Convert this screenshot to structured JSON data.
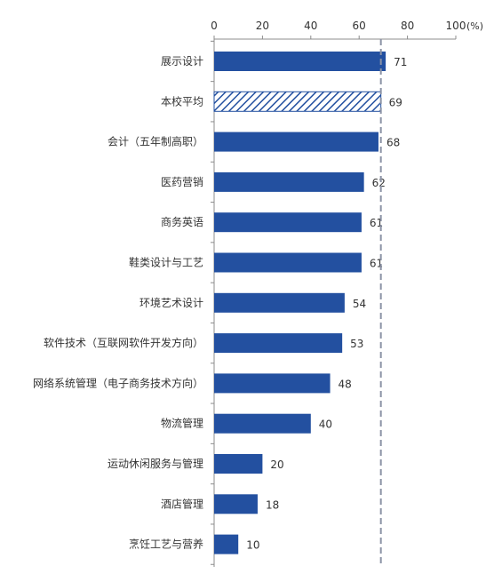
{
  "chart_data": {
    "type": "bar",
    "orientation": "horizontal",
    "categories": [
      "展示设计",
      "本校平均",
      "会计（五年制高职）",
      "医药营销",
      "商务英语",
      "鞋类设计与工艺",
      "环境艺术设计",
      "软件技术（互联网软件开发方向）",
      "网络系统管理（电子商务技术方向）",
      "物流管理",
      "运动休闲服务与管理",
      "酒店管理",
      "烹饪工艺与营养"
    ],
    "values": [
      71,
      69,
      68,
      62,
      61,
      61,
      54,
      53,
      48,
      40,
      20,
      18,
      10
    ],
    "highlight_category": "本校平均",
    "reference_line": 69,
    "xlim": [
      0,
      100
    ],
    "x_ticks": [
      "0",
      "20",
      "40",
      "60",
      "80",
      "100"
    ],
    "x_unit": "(%)",
    "x_axis_position": "top",
    "grid": false,
    "colors": {
      "bar": "#2350A0",
      "highlight_stripe": "#2350A0",
      "highlight_bg": "#ffffff",
      "reference_line": "#8C93A6",
      "axis": "#8C8C8C",
      "text": "#333333"
    }
  }
}
